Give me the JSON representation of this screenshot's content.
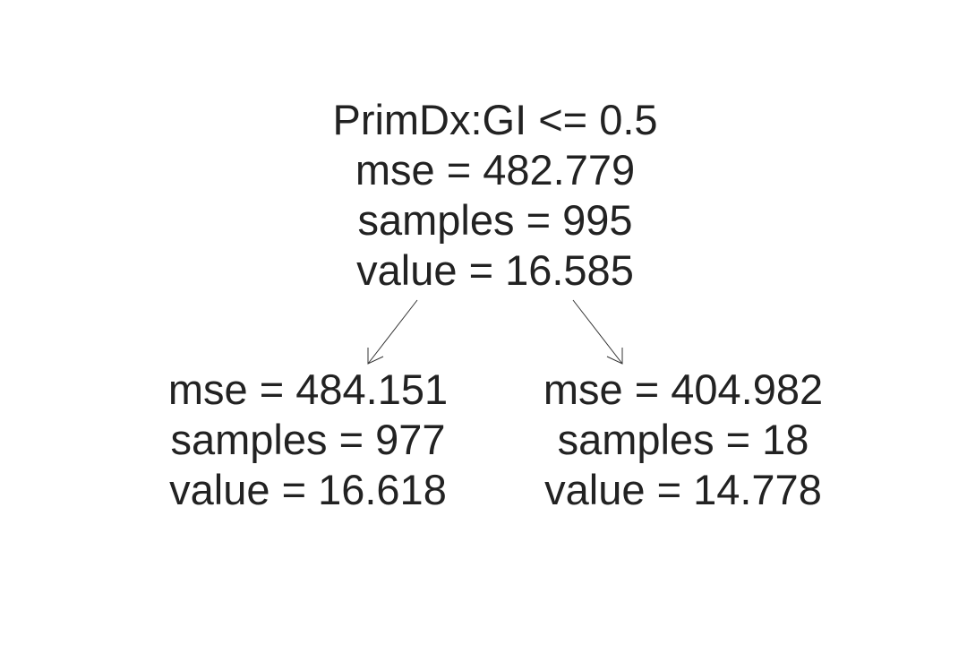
{
  "tree": {
    "root": {
      "split": "PrimDx:GI <= 0.5",
      "mse": "mse = 482.779",
      "samples": "samples = 995",
      "value": "value = 16.585"
    },
    "left": {
      "mse": "mse = 484.151",
      "samples": "samples = 977",
      "value": "value = 16.618"
    },
    "right": {
      "mse": "mse = 404.982",
      "samples": "samples = 18",
      "value": "value = 14.778"
    }
  }
}
